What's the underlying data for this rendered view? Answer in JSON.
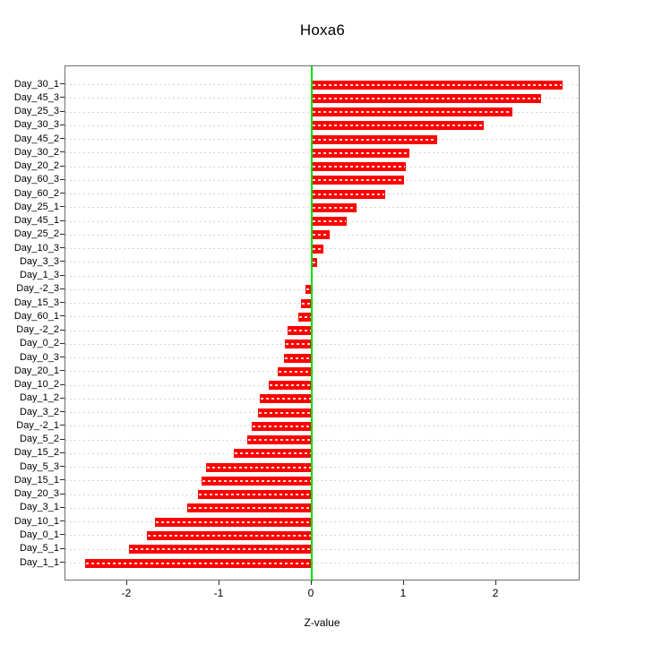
{
  "chart_data": {
    "type": "bar",
    "orientation": "horizontal",
    "title": "Hoxa6",
    "xlabel": "Z-value",
    "ylabel": "",
    "xlim": [
      -2.67,
      2.92
    ],
    "xticks": [
      -2,
      -1,
      0,
      1,
      2
    ],
    "xtick_labels": [
      "-2",
      "-1",
      "0",
      "1",
      "2"
    ],
    "grid": "dotted horizontal gridlines at each bar row",
    "legend": "none",
    "bar_color": "#fe0000",
    "zero_line_color": "#00dd00",
    "categories": [
      "Day_30_1",
      "Day_45_3",
      "Day_25_3",
      "Day_30_3",
      "Day_45_2",
      "Day_30_2",
      "Day_20_2",
      "Day_60_3",
      "Day_60_2",
      "Day_25_1",
      "Day_45_1",
      "Day_25_2",
      "Day_10_3",
      "Day_3_3",
      "Day_1_3",
      "Day_-2_3",
      "Day_15_3",
      "Day_60_1",
      "Day_-2_2",
      "Day_0_2",
      "Day_0_3",
      "Day_20_1",
      "Day_10_2",
      "Day_1_2",
      "Day_3_2",
      "Day_-2_1",
      "Day_5_2",
      "Day_15_2",
      "Day_5_3",
      "Day_15_1",
      "Day_20_3",
      "Day_3_1",
      "Day_10_1",
      "Day_0_1",
      "Day_5_1",
      "Day_1_1"
    ],
    "values": [
      2.72,
      2.49,
      2.17,
      1.86,
      1.36,
      1.06,
      1.02,
      1.0,
      0.8,
      0.49,
      0.38,
      0.19,
      0.13,
      0.06,
      0.01,
      -0.07,
      -0.12,
      -0.15,
      -0.26,
      -0.29,
      -0.3,
      -0.37,
      -0.47,
      -0.56,
      -0.58,
      -0.65,
      -0.7,
      -0.84,
      -1.15,
      -1.19,
      -1.23,
      -1.35,
      -1.7,
      -1.79,
      -1.98,
      -2.46
    ]
  }
}
